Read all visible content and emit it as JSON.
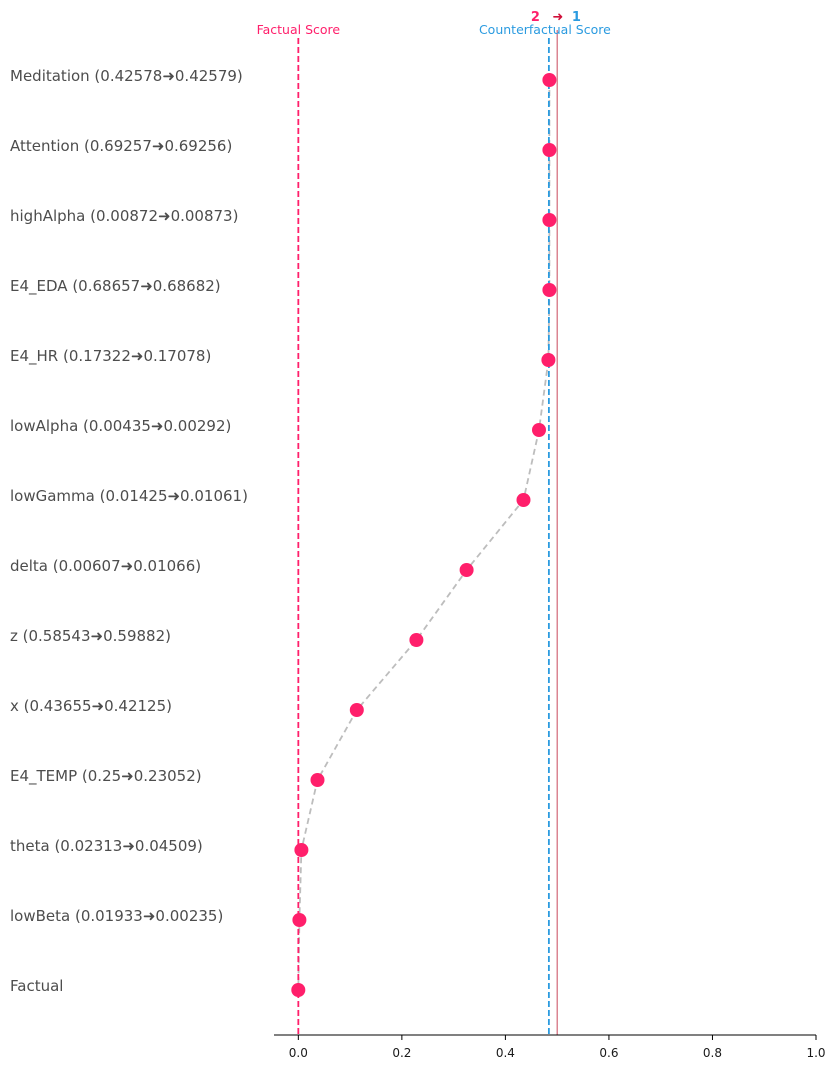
{
  "chart_data": {
    "type": "scatter",
    "reference_lines": {
      "factual": {
        "label": "Factual Score",
        "x": 0.0,
        "color": "#ff1f6b"
      },
      "counterfactual": {
        "label": "Counterfactual Score",
        "x": 0.484,
        "color": "#2b9be0"
      },
      "threshold": {
        "x": 0.5,
        "color": "#c9485b"
      }
    },
    "class_change": {
      "from": "2",
      "arrow": "➜",
      "to": "1",
      "from_color": "#ff1f6b",
      "arrow_color": "#d0103a",
      "to_color": "#2b9be0"
    },
    "points": [
      {
        "label": "Meditation (0.42578➜0.42579)",
        "x": 0.485
      },
      {
        "label": "Attention (0.69257➜0.69256)",
        "x": 0.485
      },
      {
        "label": "highAlpha (0.00872➜0.00873)",
        "x": 0.485
      },
      {
        "label": "E4_EDA (0.68657➜0.68682)",
        "x": 0.485
      },
      {
        "label": "E4_HR (0.17322➜0.17078)",
        "x": 0.483
      },
      {
        "label": "lowAlpha (0.00435➜0.00292)",
        "x": 0.465
      },
      {
        "label": "lowGamma (0.01425➜0.01061)",
        "x": 0.435
      },
      {
        "label": "delta (0.00607➜0.01066)",
        "x": 0.325
      },
      {
        "label": "z (0.58543➜0.59882)",
        "x": 0.228
      },
      {
        "label": "x (0.43655➜0.42125)",
        "x": 0.113
      },
      {
        "label": "E4_TEMP (0.25➜0.23052)",
        "x": 0.037
      },
      {
        "label": "theta (0.02313➜0.04509)",
        "x": 0.006
      },
      {
        "label": "lowBeta (0.01933➜0.00235)",
        "x": 0.002
      },
      {
        "label": "Factual",
        "x": 0.0
      }
    ],
    "x_ticks": [
      0.0,
      0.2,
      0.4,
      0.6,
      0.8,
      1.0
    ],
    "x_tick_labels": [
      "0.0",
      "0.2",
      "0.4",
      "0.6",
      "0.8",
      "1.0"
    ],
    "xlim": [
      -0.047,
      1.0
    ],
    "point_color": "#ff1f6b",
    "path_color": "#bdbdbd"
  }
}
